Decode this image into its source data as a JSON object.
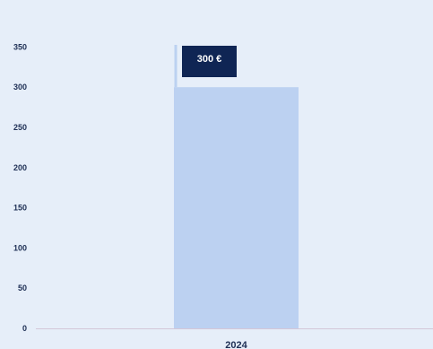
{
  "chart_data": {
    "type": "bar",
    "categories": [
      "2024"
    ],
    "values": [
      300
    ],
    "data_labels": [
      "300  €"
    ],
    "ylim": [
      0,
      375
    ],
    "yticks": [
      "0",
      "50",
      "100",
      "150",
      "200",
      "250",
      "300",
      "350"
    ],
    "title": "",
    "xlabel": "",
    "ylabel": "",
    "grid": false,
    "colors": {
      "background": "#e6eef9",
      "bar": "#bcd1f1",
      "label_box": "#0f2554",
      "label_text": "#ffffff",
      "axis_text": "#1e2f55",
      "baseline": "#d4c6d8",
      "pointer_line": "#bcd1f1"
    }
  }
}
